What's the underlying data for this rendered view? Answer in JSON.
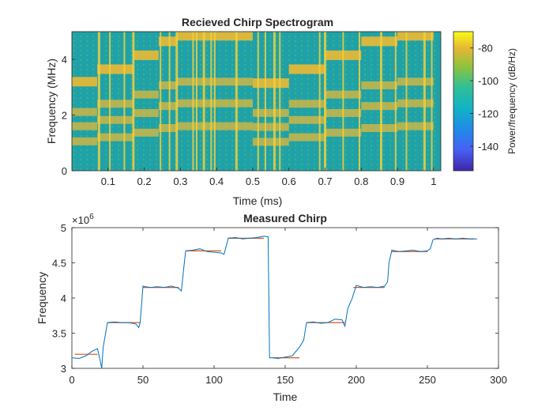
{
  "colors": {
    "figure_bg": "#ffffff",
    "axis": "#262626",
    "spectrogram_background": "#1fa3a3",
    "spectrogram_stripe": "#f0d040",
    "chirp_band": "#e3b83a",
    "measured_line": "#0072bd",
    "reference_line": "#d95319"
  },
  "chart_data": [
    {
      "type": "heatmap",
      "title": "Recieved Chirp Spectrogram",
      "xlabel": "Time (ms)",
      "ylabel": "Frequency (MHz)",
      "xlim": [
        0,
        1.02
      ],
      "ylim": [
        0,
        5
      ],
      "xticks": [
        0.1,
        0.2,
        0.3,
        0.4,
        0.5,
        0.6,
        0.7,
        0.8,
        0.9,
        1
      ],
      "xticklabels": [
        "0.1",
        "0.2",
        "0.3",
        "0.4",
        "0.5",
        "0.6",
        "0.7",
        "0.8",
        "0.9",
        "1"
      ],
      "yticks": [
        0,
        2,
        4
      ],
      "yticklabels": [
        "0",
        "2",
        "4"
      ],
      "colormap": "parula",
      "colorbar": {
        "label": "Power/frequency (dB/Hz)",
        "clim": [
          -155,
          -70
        ],
        "ticks": [
          -80,
          -100,
          -120,
          -140
        ],
        "ticklabels": [
          "-80",
          "-100",
          "-120",
          "-140"
        ]
      },
      "chirp_steps": [
        {
          "t_start": 0.0,
          "t_end": 0.07,
          "freq_mhz": 3.2
        },
        {
          "t_start": 0.07,
          "t_end": 0.17,
          "freq_mhz": 3.65
        },
        {
          "t_start": 0.17,
          "t_end": 0.24,
          "freq_mhz": 4.15
        },
        {
          "t_start": 0.24,
          "t_end": 0.29,
          "freq_mhz": 4.65
        },
        {
          "t_start": 0.29,
          "t_end": 0.5,
          "freq_mhz": 4.85
        },
        {
          "t_start": 0.5,
          "t_end": 0.6,
          "freq_mhz": 3.15
        },
        {
          "t_start": 0.6,
          "t_end": 0.7,
          "freq_mhz": 3.65
        },
        {
          "t_start": 0.7,
          "t_end": 0.8,
          "freq_mhz": 4.15
        },
        {
          "t_start": 0.8,
          "t_end": 0.9,
          "freq_mhz": 4.65
        },
        {
          "t_start": 0.9,
          "t_end": 1.0,
          "freq_mhz": 4.85
        }
      ],
      "stripe_times_ms": [
        0.075,
        0.105,
        0.145,
        0.17,
        0.245,
        0.27,
        0.29,
        0.335,
        0.345,
        0.365,
        0.385,
        0.395,
        0.455,
        0.515,
        0.535,
        0.56,
        0.575,
        0.685,
        0.7,
        0.75,
        0.795,
        0.855,
        0.895,
        0.925,
        0.975,
        0.995
      ]
    },
    {
      "type": "line",
      "title": "Measured Chirp",
      "xlabel": "Time",
      "ylabel": "Frequency",
      "exponent_label": "×10",
      "exponent_power": "6",
      "xlim": [
        0,
        300
      ],
      "ylim": [
        3000000,
        5000000
      ],
      "xticks": [
        0,
        50,
        100,
        150,
        200,
        250,
        300
      ],
      "xticklabels": [
        "0",
        "50",
        "100",
        "150",
        "200",
        "250",
        "300"
      ],
      "yticks": [
        3000000,
        3500000,
        4000000,
        4500000,
        5000000
      ],
      "yticklabels": [
        "3",
        "3.5",
        "4",
        "4.5",
        "5"
      ],
      "series": [
        {
          "color": "#0072bd",
          "x": [
            0,
            5,
            10,
            14,
            18,
            20,
            21,
            22,
            25,
            30,
            35,
            40,
            45,
            47,
            48,
            50,
            52,
            55,
            60,
            65,
            70,
            75,
            77,
            78,
            80,
            85,
            90,
            95,
            100,
            105,
            107,
            108,
            110,
            115,
            120,
            125,
            130,
            135,
            138,
            139,
            141,
            145,
            150,
            155,
            160,
            163,
            165,
            170,
            175,
            180,
            185,
            190,
            192,
            194,
            197,
            200,
            205,
            210,
            215,
            220,
            222,
            223,
            225,
            230,
            235,
            240,
            245,
            250,
            252,
            254,
            257,
            260,
            265,
            270,
            275,
            280,
            285
          ],
          "values": [
            3150000,
            3140000,
            3180000,
            3240000,
            3280000,
            3100000,
            3000000,
            3300000,
            3650000,
            3660000,
            3650000,
            3650000,
            3630000,
            3580000,
            3650000,
            4170000,
            4160000,
            4150000,
            4160000,
            4150000,
            4170000,
            4140000,
            4100000,
            4300000,
            4670000,
            4680000,
            4700000,
            4660000,
            4650000,
            4640000,
            4620000,
            4700000,
            4850000,
            4860000,
            4840000,
            4850000,
            4860000,
            4880000,
            4870000,
            3150000,
            3150000,
            3140000,
            3160000,
            3180000,
            3300000,
            3400000,
            3650000,
            3660000,
            3640000,
            3650000,
            3700000,
            3690000,
            3600000,
            3850000,
            3990000,
            4180000,
            4150000,
            4160000,
            4150000,
            4170000,
            4230000,
            4500000,
            4680000,
            4660000,
            4670000,
            4680000,
            4660000,
            4670000,
            4700000,
            4830000,
            4850000,
            4840000,
            4850000,
            4840000,
            4850000,
            4840000,
            4840000
          ]
        },
        {
          "color": "#d95319",
          "segments": [
            {
              "x": [
                2,
                18
              ],
              "y": 3200000
            },
            {
              "x": [
                25,
                48
              ],
              "y": 3650000
            },
            {
              "x": [
                50,
                75
              ],
              "y": 4150000
            },
            {
              "x": [
                80,
                105
              ],
              "y": 4670000
            },
            {
              "x": [
                110,
                135
              ],
              "y": 4850000
            },
            {
              "x": [
                141,
                160
              ],
              "y": 3150000
            },
            {
              "x": [
                165,
                192
              ],
              "y": 3650000
            },
            {
              "x": [
                198,
                220
              ],
              "y": 4150000
            },
            {
              "x": [
                225,
                250
              ],
              "y": 4660000
            },
            {
              "x": [
                255,
                283
              ],
              "y": 4840000
            }
          ]
        }
      ]
    }
  ]
}
